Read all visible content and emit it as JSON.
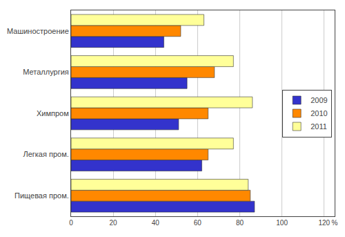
{
  "chart_data": {
    "type": "bar",
    "orientation": "horizontal",
    "categories": [
      "Пищевая пром.",
      "Легкая пром.",
      "Химпром",
      "Металлургия",
      "Машиностроение"
    ],
    "series": [
      {
        "name": "2009",
        "color": "#3333CC",
        "values": [
          87,
          62,
          51,
          55,
          44
        ]
      },
      {
        "name": "2010",
        "color": "#FF8800",
        "values": [
          85,
          65,
          65,
          68,
          52
        ]
      },
      {
        "name": "2011",
        "color": "#FFFF99",
        "values": [
          84,
          77,
          86,
          77,
          63
        ]
      }
    ],
    "xlim": [
      0,
      125
    ],
    "xticks": [
      0,
      20,
      40,
      60,
      80,
      100,
      120,
      {
        "value": 125,
        "label": "%"
      }
    ],
    "grid": true,
    "legend": "right"
  }
}
